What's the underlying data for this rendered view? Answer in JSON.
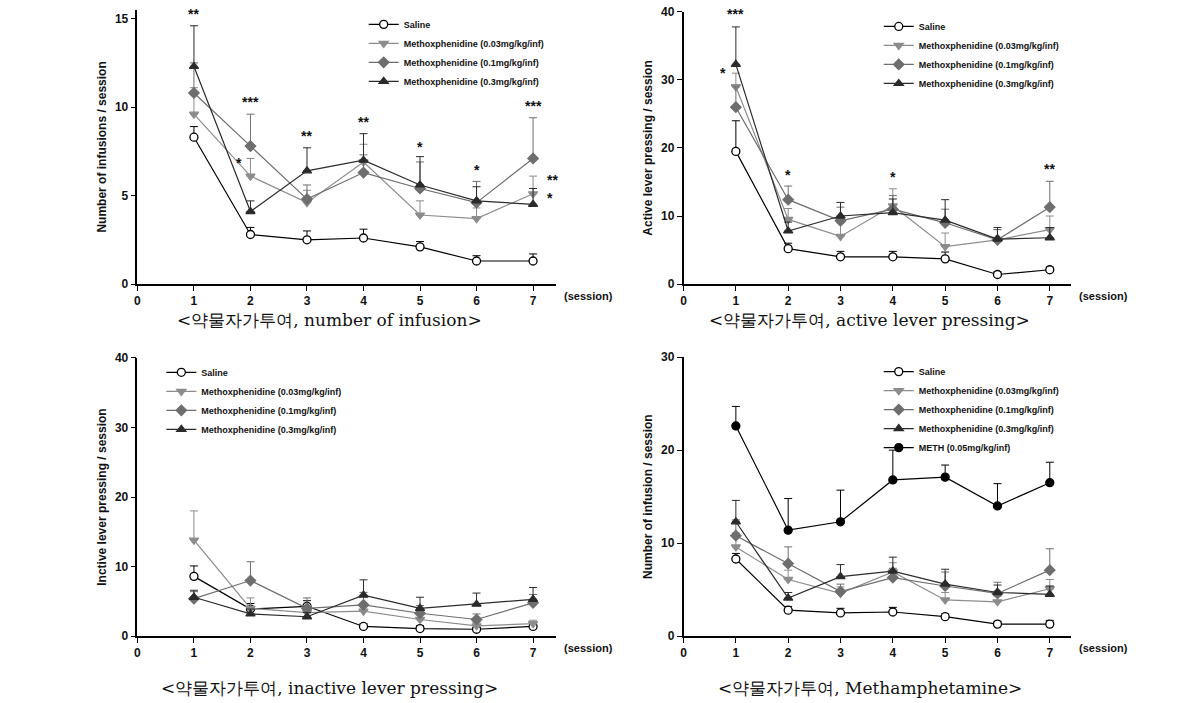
{
  "chart_data": [
    {
      "type": "line",
      "title": "<약물자가투여, number of infusion>",
      "x_label": "(session)",
      "y_label": "Number of infusions / session",
      "x": [
        1,
        2,
        3,
        4,
        5,
        6,
        7
      ],
      "xlim": [
        0,
        7.4
      ],
      "xticks": [
        0,
        1,
        2,
        3,
        4,
        5,
        6,
        7
      ],
      "ylim": [
        0,
        15.5
      ],
      "yticks": [
        0,
        5,
        10,
        15
      ],
      "legend": "top right",
      "series": [
        {
          "name": "Saline",
          "color": "#000000",
          "marker": "circle-open",
          "values": [
            8.3,
            2.8,
            2.5,
            2.6,
            2.1,
            1.3,
            1.3
          ],
          "error": [
            0.6,
            0.4,
            0.5,
            0.5,
            0.3,
            0.3,
            0.4
          ]
        },
        {
          "name": "Methoxphenidine (0.03mg/kg/inf)",
          "color": "#8c8c8c",
          "marker": "triangle-down",
          "values": [
            9.6,
            6.1,
            4.6,
            6.9,
            3.9,
            3.7,
            5.1
          ],
          "error": [
            1.5,
            1.0,
            0.7,
            1.0,
            0.8,
            0.6,
            1.0
          ]
        },
        {
          "name": "Methoxphenidine (0.1mg/kg/inf)",
          "color": "#6e6e6e",
          "marker": "diamond",
          "values": [
            10.8,
            7.8,
            4.8,
            6.3,
            5.4,
            4.6,
            7.1
          ],
          "error": [
            1.7,
            1.8,
            0.8,
            1.0,
            1.5,
            1.2,
            2.3
          ]
        },
        {
          "name": "Methoxphenidine (0.3mg/kg/inf)",
          "color": "#2b2b2b",
          "marker": "triangle-up",
          "values": [
            12.3,
            4.1,
            6.4,
            7.0,
            5.6,
            4.7,
            4.5
          ],
          "error": [
            2.3,
            0.6,
            1.3,
            1.5,
            1.6,
            0.8,
            0.9
          ]
        }
      ],
      "annotations": [
        {
          "text": "**",
          "x": 1,
          "y": 14.7
        },
        {
          "text": "***",
          "x": 2,
          "y": 9.7
        },
        {
          "text": "*",
          "x": 1.8,
          "y": 6.3
        },
        {
          "text": "**",
          "x": 3,
          "y": 7.8
        },
        {
          "text": "**",
          "x": 4,
          "y": 8.6
        },
        {
          "text": "*",
          "x": 5,
          "y": 7.2
        },
        {
          "text": "*",
          "x": 6,
          "y": 5.9
        },
        {
          "text": "***",
          "x": 7,
          "y": 9.5
        },
        {
          "text": "**",
          "x": 7.35,
          "y": 5.3
        },
        {
          "text": "*",
          "x": 7.3,
          "y": 4.3
        }
      ]
    },
    {
      "type": "line",
      "title": "<약물자가투여, active lever pressing>",
      "x_label": "(session)",
      "y_label": "Active lever pressing / session",
      "x": [
        1,
        2,
        3,
        4,
        5,
        6,
        7
      ],
      "xlim": [
        0,
        7.4
      ],
      "xticks": [
        0,
        1,
        2,
        3,
        4,
        5,
        6,
        7
      ],
      "ylim": [
        0,
        40
      ],
      "yticks": [
        0,
        10,
        20,
        30,
        40
      ],
      "legend": "top right",
      "series": [
        {
          "name": "Saline",
          "color": "#000000",
          "marker": "circle-open",
          "values": [
            19.5,
            5.2,
            4.0,
            4.0,
            3.7,
            1.4,
            2.1
          ],
          "error": [
            4.5,
            0.8,
            0.8,
            0.8,
            1.0,
            0.4,
            0.4
          ]
        },
        {
          "name": "Methoxphenidine (0.03mg/kg/inf)",
          "color": "#8c8c8c",
          "marker": "triangle-down",
          "values": [
            29.0,
            9.5,
            7.0,
            11.5,
            5.5,
            6.5,
            8.0
          ],
          "error": [
            2.0,
            1.6,
            2.0,
            2.5,
            2.0,
            1.5,
            2.0
          ]
        },
        {
          "name": "Methoxphenidine (0.1mg/kg/inf)",
          "color": "#6e6e6e",
          "marker": "diamond",
          "values": [
            26.0,
            12.4,
            9.3,
            11.0,
            9.0,
            6.5,
            11.3
          ],
          "error": [
            3.0,
            2.0,
            2.0,
            2.0,
            2.0,
            1.5,
            3.8
          ]
        },
        {
          "name": "Methoxphenidine (0.3mg/kg/inf)",
          "color": "#2b2b2b",
          "marker": "triangle-up",
          "values": [
            32.3,
            7.8,
            10.0,
            10.5,
            9.4,
            6.6,
            6.8
          ],
          "error": [
            5.5,
            1.3,
            2.0,
            2.0,
            3.0,
            1.7,
            1.5
          ]
        }
      ],
      "annotations": [
        {
          "text": "***",
          "x": 1,
          "y": 38.2
        },
        {
          "text": "*",
          "x": 0.75,
          "y": 29.5
        },
        {
          "text": "*",
          "x": 2,
          "y": 14.6
        },
        {
          "text": "*",
          "x": 4,
          "y": 14.2
        },
        {
          "text": "**",
          "x": 7,
          "y": 15.4
        }
      ]
    },
    {
      "type": "line",
      "title": "<약물자가투여, inactive lever pressing>",
      "x_label": "(session)",
      "y_label": "Inctive lever pressing / session",
      "x": [
        1,
        2,
        3,
        4,
        5,
        6,
        7
      ],
      "xlim": [
        0,
        7.4
      ],
      "xticks": [
        0,
        1,
        2,
        3,
        4,
        5,
        6,
        7
      ],
      "ylim": [
        0,
        40
      ],
      "yticks": [
        0,
        10,
        20,
        30,
        40
      ],
      "legend": "top left",
      "series": [
        {
          "name": "Saline",
          "color": "#000000",
          "marker": "circle-open",
          "values": [
            8.6,
            3.9,
            4.3,
            1.4,
            1.1,
            1.0,
            1.4
          ],
          "error": [
            1.5,
            0.8,
            0.8,
            0.4,
            0.4,
            0.3,
            0.4
          ]
        },
        {
          "name": "Methoxphenidine (0.03mg/kg/inf)",
          "color": "#8c8c8c",
          "marker": "triangle-down",
          "values": [
            13.8,
            4.0,
            3.4,
            3.6,
            2.4,
            1.5,
            1.8
          ],
          "error": [
            4.2,
            1.5,
            1.0,
            1.0,
            0.8,
            0.5,
            0.5
          ]
        },
        {
          "name": "Methoxphenidine (0.1mg/kg/inf)",
          "color": "#6e6e6e",
          "marker": "diamond",
          "values": [
            5.4,
            8.0,
            4.0,
            4.5,
            3.3,
            2.4,
            4.8
          ],
          "error": [
            1.0,
            2.7,
            1.5,
            1.8,
            1.1,
            0.8,
            1.2
          ]
        },
        {
          "name": "Methoxphenidine (0.3mg/kg/inf)",
          "color": "#2b2b2b",
          "marker": "triangle-up",
          "values": [
            5.6,
            3.2,
            2.8,
            5.9,
            4.0,
            4.6,
            5.3
          ],
          "error": [
            1.0,
            0.7,
            0.6,
            2.2,
            1.6,
            1.6,
            1.7
          ]
        }
      ],
      "annotations": []
    },
    {
      "type": "line",
      "title": "<약물자가투여, Methamphetamine>",
      "x_label": "(session)",
      "y_label": "Number of infusion / session",
      "x": [
        1,
        2,
        3,
        4,
        5,
        6,
        7
      ],
      "xlim": [
        0,
        7.4
      ],
      "xticks": [
        0,
        1,
        2,
        3,
        4,
        5,
        6,
        7
      ],
      "ylim": [
        0,
        30
      ],
      "yticks": [
        0,
        10,
        20,
        30
      ],
      "legend": "top right",
      "series": [
        {
          "name": "Saline",
          "color": "#000000",
          "marker": "circle-open",
          "values": [
            8.3,
            2.8,
            2.5,
            2.6,
            2.1,
            1.3,
            1.3
          ],
          "error": [
            0.6,
            0.4,
            0.5,
            0.5,
            0.3,
            0.3,
            0.4
          ]
        },
        {
          "name": "Methoxphenidine (0.03mg/kg/inf)",
          "color": "#8c8c8c",
          "marker": "triangle-down",
          "values": [
            9.6,
            6.1,
            4.6,
            6.9,
            3.9,
            3.7,
            5.1
          ],
          "error": [
            1.5,
            1.0,
            0.7,
            1.0,
            0.8,
            0.6,
            1.0
          ]
        },
        {
          "name": "Methoxphenidine (0.1mg/kg/inf)",
          "color": "#6e6e6e",
          "marker": "diamond",
          "values": [
            10.8,
            7.8,
            4.8,
            6.3,
            5.4,
            4.6,
            7.1
          ],
          "error": [
            1.7,
            1.8,
            0.8,
            1.0,
            1.5,
            1.2,
            2.3
          ]
        },
        {
          "name": "Methoxphenidine (0.3mg/kg/inf)",
          "color": "#2b2b2b",
          "marker": "triangle-up",
          "values": [
            12.3,
            4.1,
            6.4,
            7.0,
            5.6,
            4.7,
            4.5
          ],
          "error": [
            2.3,
            0.6,
            1.3,
            1.5,
            1.6,
            0.8,
            0.9
          ]
        },
        {
          "name": "METH (0.05mg/kg/inf)",
          "color": "#000000",
          "marker": "circle",
          "values": [
            22.6,
            11.4,
            12.3,
            16.8,
            17.1,
            14.0,
            16.5
          ],
          "error": [
            2.1,
            3.4,
            3.4,
            3.2,
            1.3,
            2.4,
            2.2
          ]
        }
      ],
      "annotations": []
    }
  ]
}
